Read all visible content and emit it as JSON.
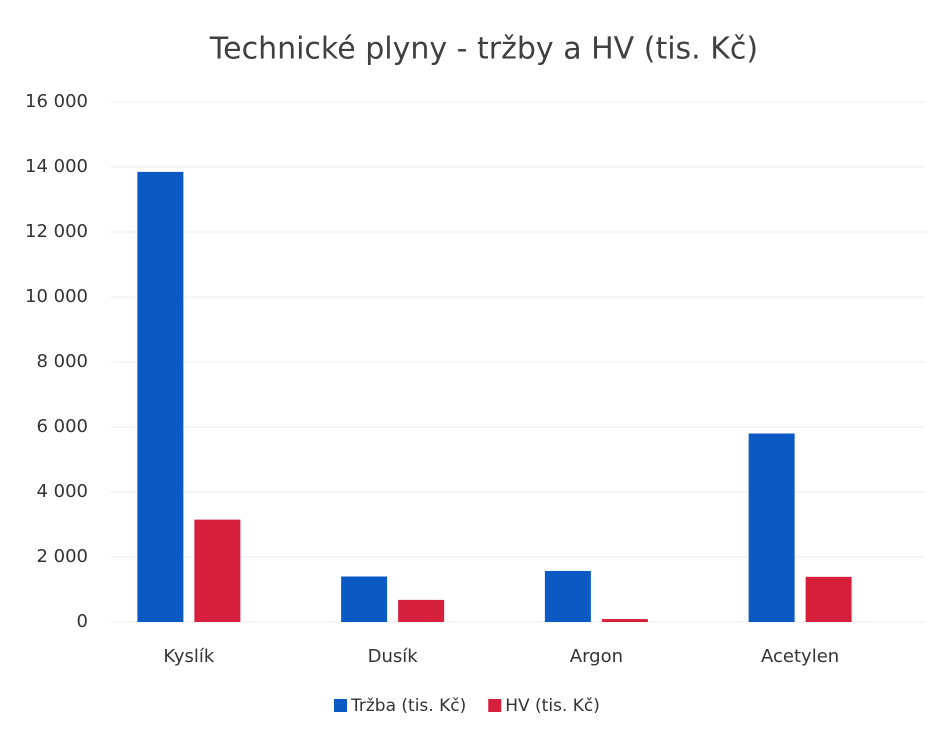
{
  "chart_data": {
    "type": "bar",
    "title": "Technické plyny - tržby a HV (tis. Kč)",
    "categories": [
      "Kyslík",
      "Dusík",
      "Argon",
      "Acetylen"
    ],
    "series": [
      {
        "name": "Tržba (tis. Kč)",
        "color": "#0b5ac4",
        "values": [
          13850,
          1400,
          1570,
          5800
        ]
      },
      {
        "name": "HV (tis. Kč)",
        "color": "#d51f3b",
        "values": [
          3150,
          680,
          90,
          1390
        ]
      }
    ],
    "ylim": [
      0,
      16000
    ],
    "yticks": [
      0,
      {
        "value": 2000,
        "label": "2 000"
      },
      {
        "value": 4000,
        "label": "4 000"
      },
      {
        "value": 6000,
        "label": "6 000"
      },
      {
        "value": 8000,
        "label": "8 000"
      },
      {
        "value": 10000,
        "label": "10 000"
      },
      {
        "value": 12000,
        "label": "12 000"
      },
      {
        "value": 14000,
        "label": "14 000"
      },
      {
        "value": 16000,
        "label": "16 000"
      }
    ],
    "grid": true,
    "legend": "bottom"
  }
}
